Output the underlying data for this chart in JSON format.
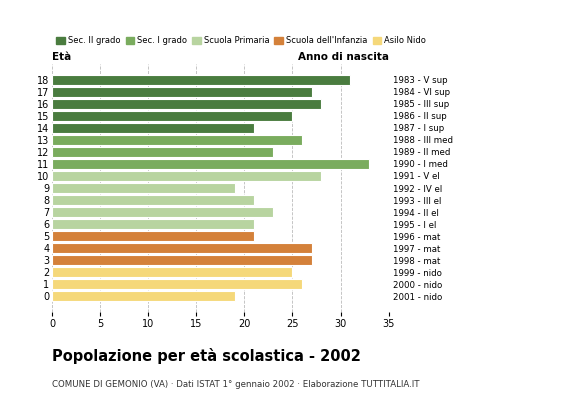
{
  "ages": [
    18,
    17,
    16,
    15,
    14,
    13,
    12,
    11,
    10,
    9,
    8,
    7,
    6,
    5,
    4,
    3,
    2,
    1,
    0
  ],
  "values": [
    31,
    27,
    28,
    25,
    21,
    26,
    23,
    33,
    28,
    19,
    21,
    23,
    21,
    21,
    27,
    27,
    25,
    26,
    19
  ],
  "right_labels": [
    "1983 - V sup",
    "1984 - VI sup",
    "1985 - III sup",
    "1986 - II sup",
    "1987 - I sup",
    "1988 - III med",
    "1989 - II med",
    "1990 - I med",
    "1991 - V el",
    "1992 - IV el",
    "1993 - III el",
    "1994 - II el",
    "1995 - I el",
    "1996 - mat",
    "1997 - mat",
    "1998 - mat",
    "1999 - nido",
    "2000 - nido",
    "2001 - nido"
  ],
  "bar_colors": [
    "#4a7c3f",
    "#4a7c3f",
    "#4a7c3f",
    "#4a7c3f",
    "#4a7c3f",
    "#7aac5e",
    "#7aac5e",
    "#7aac5e",
    "#b8d4a0",
    "#b8d4a0",
    "#b8d4a0",
    "#b8d4a0",
    "#b8d4a0",
    "#d4813a",
    "#d4813a",
    "#d4813a",
    "#f5d87a",
    "#f5d87a",
    "#f5d87a"
  ],
  "legend_labels": [
    "Sec. II grado",
    "Sec. I grado",
    "Scuola Primaria",
    "Scuola dell'Infanzia",
    "Asilo Nido"
  ],
  "legend_colors": [
    "#4a7c3f",
    "#7aac5e",
    "#b8d4a0",
    "#d4813a",
    "#f5d87a"
  ],
  "title": "Popolazione per età scolastica - 2002",
  "subtitle": "COMUNE DI GEMONIO (VA) · Dati ISTAT 1° gennaio 2002 · Elaborazione TUTTITALIA.IT",
  "xlabel_eta": "Età",
  "xlabel_anno": "Anno di nascita",
  "xlim": [
    0,
    35
  ],
  "xticks": [
    0,
    5,
    10,
    15,
    20,
    25,
    30,
    35
  ],
  "background_color": "#ffffff",
  "grid_color": "#bbbbbb"
}
